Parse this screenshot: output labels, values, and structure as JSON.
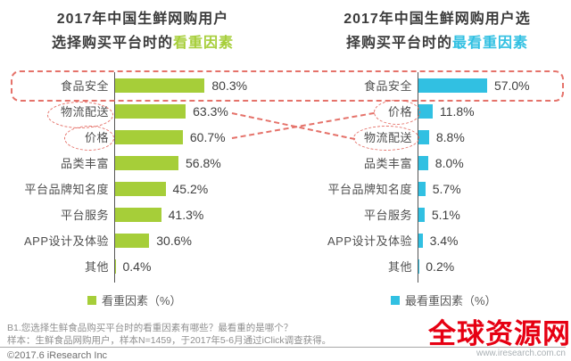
{
  "titles": {
    "left": {
      "line1": "2017年中国生鲜网购用户",
      "line2_prefix": "选择购买平台时的",
      "line2_highlight": "看重因素"
    },
    "right": {
      "line1": "2017年中国生鲜网购用户选",
      "line2_prefix": "择购买平台时的",
      "line2_highlight": "最看重因素"
    }
  },
  "chart_data": [
    {
      "type": "bar",
      "orientation": "horizontal",
      "title": "2017年中国生鲜网购用户选择购买平台时的看重因素",
      "categories": [
        "食品安全",
        "物流配送",
        "价格",
        "品类丰富",
        "平台品牌知名度",
        "平台服务",
        "APP设计及体验",
        "其他"
      ],
      "values": [
        80.3,
        63.3,
        60.7,
        56.8,
        45.2,
        41.3,
        30.6,
        0.4
      ],
      "unit": "%",
      "xlim": [
        0,
        100
      ],
      "legend": "看重因素（%）",
      "legend_position": "bottom",
      "color": "#a6ce39",
      "grid": false
    },
    {
      "type": "bar",
      "orientation": "horizontal",
      "title": "2017年中国生鲜网购用户选择购买平台时的最看重因素",
      "categories": [
        "食品安全",
        "价格",
        "物流配送",
        "品类丰富",
        "平台品牌知名度",
        "平台服务",
        "APP设计及体验",
        "其他"
      ],
      "values": [
        57.0,
        11.8,
        8.8,
        8.0,
        5.7,
        5.1,
        3.4,
        0.2
      ],
      "unit": "%",
      "xlim": [
        0,
        100
      ],
      "legend": "最看重因素（%）",
      "legend_position": "bottom",
      "color": "#31c0e2",
      "grid": false
    }
  ],
  "annotations": {
    "color": "#e5726a",
    "boxed_row_both_charts": "食品安全",
    "circled_left": [
      "物流配送",
      "价格"
    ],
    "circled_right": [
      "价格",
      "物流配送"
    ],
    "meaning": "rank swap between 物流配送 and 价格 across the two charts"
  },
  "footer": {
    "question": "B1.您选择生鲜食品购买平台时的看重因素有哪些？最看重的是哪个？",
    "sample_note": "样本：生鲜食品网购用户，样本N=1459，于2017年5-6月通过iClick调查获得。",
    "copyright": "©2017.6 iResearch Inc"
  },
  "watermark": {
    "text": "全球资源网",
    "url": "www.iresearch.com.cn",
    "color": "#e60012"
  }
}
